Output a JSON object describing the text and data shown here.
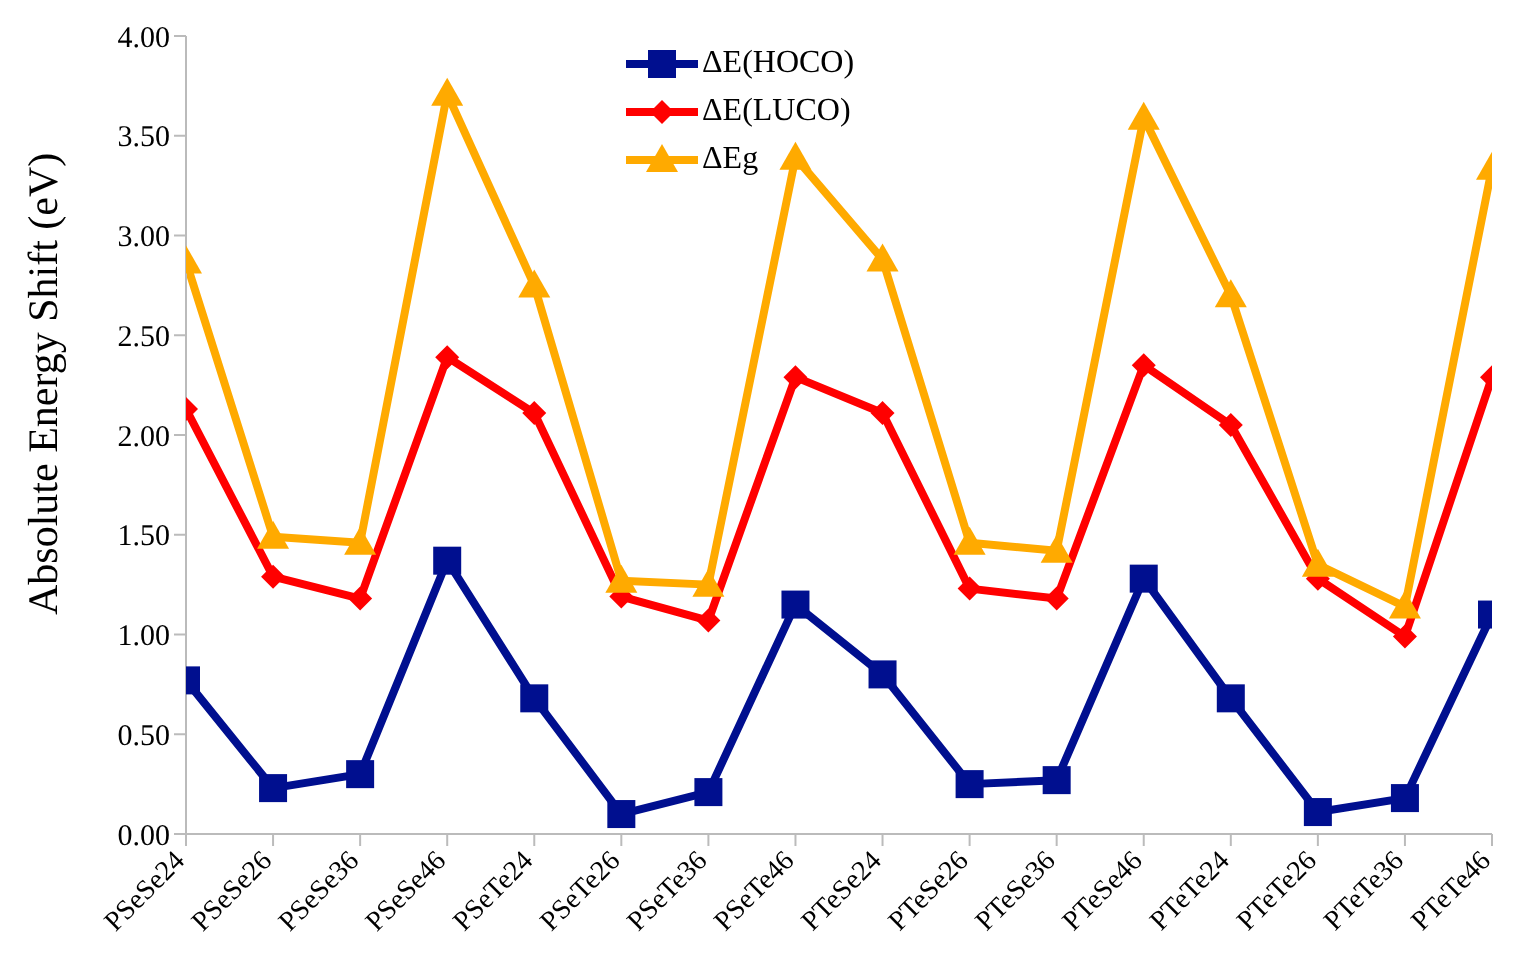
{
  "chart_data": {
    "type": "line",
    "ylabel": "Absolute Energy Shift (eV)",
    "categories": [
      "PSeSe24",
      "PSeSe26",
      "PSeSe36",
      "PSeSe46",
      "PSeTe24",
      "PSeTe26",
      "PSeTe36",
      "PSeTe46",
      "PTeSe24",
      "PTeSe26",
      "PTeSe36",
      "PTeSe46",
      "PTeTe24",
      "PTeTe26",
      "PTeTe36",
      "PTeTe46"
    ],
    "series": [
      {
        "name": "ΔE(HOCO)",
        "color": "#000f8f",
        "marker": "square",
        "values": [
          0.77,
          0.23,
          0.3,
          1.37,
          0.68,
          0.1,
          0.21,
          1.15,
          0.8,
          0.25,
          0.27,
          1.28,
          0.68,
          0.11,
          0.18,
          1.1
        ]
      },
      {
        "name": "ΔE(LUCO)",
        "color": "#ff0000",
        "marker": "diamond",
        "values": [
          2.13,
          1.29,
          1.18,
          2.39,
          2.11,
          1.19,
          1.07,
          2.29,
          2.11,
          1.23,
          1.18,
          2.35,
          2.05,
          1.28,
          0.99,
          2.29
        ]
      },
      {
        "name": "ΔEg",
        "color": "#ffaa00",
        "marker": "triangle",
        "values": [
          2.87,
          1.49,
          1.46,
          3.71,
          2.75,
          1.27,
          1.25,
          3.39,
          2.88,
          1.46,
          1.42,
          3.59,
          2.7,
          1.35,
          1.14,
          3.34
        ]
      }
    ],
    "ylim": [
      0,
      4
    ],
    "yticks": [
      {
        "value": 0,
        "label": "0.00"
      },
      {
        "value": 0.5,
        "label": "0.50"
      },
      {
        "value": 1,
        "label": "1.00"
      },
      {
        "value": 1.5,
        "label": "1.50"
      },
      {
        "value": 2,
        "label": "2.00"
      },
      {
        "value": 2.5,
        "label": "2.50"
      },
      {
        "value": 3,
        "label": "3.00"
      },
      {
        "value": 3.5,
        "label": "3.50"
      },
      {
        "value": 4,
        "label": "4.00"
      }
    ],
    "grid": false,
    "legend": "top"
  }
}
